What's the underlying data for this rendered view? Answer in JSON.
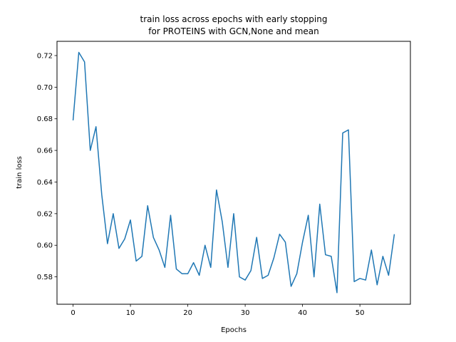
{
  "chart_data": {
    "type": "line",
    "title": [
      "train loss across epochs with early stopping",
      "for PROTEINS with GCN,None  and mean"
    ],
    "xlabel": "Epochs",
    "ylabel": "train loss",
    "xlim": [
      -2.8,
      58.8
    ],
    "ylim": [
      0.5627,
      0.729
    ],
    "xticks": [
      0,
      10,
      20,
      30,
      40,
      50
    ],
    "yticks": [
      0.58,
      0.6,
      0.62,
      0.64,
      0.66,
      0.68,
      0.7,
      0.72
    ],
    "grid": false,
    "legend": "none",
    "series": [
      {
        "color": "#1f77b4",
        "x": [
          0,
          1,
          2,
          3,
          4,
          5,
          6,
          7,
          8,
          9,
          10,
          11,
          12,
          13,
          14,
          15,
          16,
          17,
          18,
          19,
          20,
          21,
          22,
          23,
          24,
          25,
          26,
          27,
          28,
          29,
          30,
          31,
          32,
          33,
          34,
          35,
          36,
          37,
          38,
          39,
          40,
          41,
          42,
          43,
          44,
          45,
          46,
          47,
          48,
          49,
          50,
          51,
          52,
          53,
          54,
          55,
          56
        ],
        "y": [
          0.679,
          0.722,
          0.716,
          0.66,
          0.675,
          0.632,
          0.601,
          0.62,
          0.598,
          0.604,
          0.616,
          0.59,
          0.593,
          0.625,
          0.605,
          0.597,
          0.586,
          0.619,
          0.585,
          0.582,
          0.582,
          0.589,
          0.581,
          0.6,
          0.586,
          0.635,
          0.615,
          0.586,
          0.62,
          0.58,
          0.578,
          0.584,
          0.605,
          0.579,
          0.581,
          0.592,
          0.607,
          0.602,
          0.574,
          0.582,
          0.602,
          0.619,
          0.58,
          0.626,
          0.594,
          0.593,
          0.57,
          0.671,
          0.673,
          0.577,
          0.579,
          0.578,
          0.597,
          0.575,
          0.593,
          0.581,
          0.607
        ]
      }
    ]
  }
}
